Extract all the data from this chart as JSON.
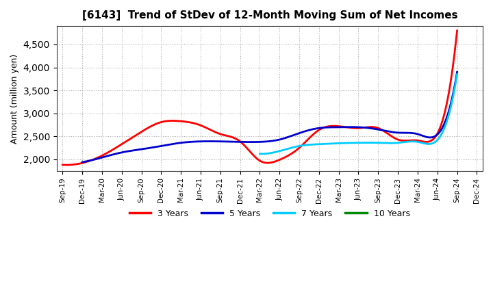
{
  "title": "[6143]  Trend of StDev of 12-Month Moving Sum of Net Incomes",
  "ylabel": "Amount (million yen)",
  "background_color": "#ffffff",
  "grid_color": "#aaaaaa",
  "x_labels": [
    "Sep-19",
    "Dec-19",
    "Mar-20",
    "Jun-20",
    "Sep-20",
    "Dec-20",
    "Mar-21",
    "Jun-21",
    "Sep-21",
    "Dec-21",
    "Mar-22",
    "Jun-22",
    "Sep-22",
    "Dec-22",
    "Mar-23",
    "Jun-23",
    "Sep-23",
    "Dec-23",
    "Mar-24",
    "Jun-24",
    "Sep-24",
    "Dec-24"
  ],
  "ylim": [
    1750,
    4900
  ],
  "yticks": [
    2000,
    2500,
    3000,
    3500,
    4000,
    4500
  ],
  "series": {
    "3 Years": {
      "color": "#ff0000",
      "y": [
        1880,
        1920,
        2080,
        2330,
        2600,
        2810,
        2830,
        2740,
        2550,
        2390,
        1970,
        1990,
        2250,
        2640,
        2720,
        2680,
        2680,
        2430,
        2410,
        2560,
        4800,
        null
      ]
    },
    "5 Years": {
      "color": "#0000cc",
      "y": [
        null,
        1940,
        2040,
        2150,
        2220,
        2290,
        2360,
        2390,
        2390,
        2380,
        2380,
        2430,
        2570,
        2680,
        2700,
        2700,
        2650,
        2580,
        2550,
        2540,
        3900,
        null
      ]
    },
    "7 Years": {
      "color": "#00ccff",
      "y": [
        null,
        null,
        null,
        null,
        null,
        null,
        null,
        null,
        null,
        null,
        2120,
        2180,
        2290,
        2330,
        2350,
        2360,
        2360,
        2360,
        2380,
        2420,
        3850,
        null
      ]
    },
    "10 Years": {
      "color": "#008800",
      "y": [
        null,
        null,
        null,
        null,
        null,
        null,
        null,
        null,
        null,
        null,
        null,
        null,
        null,
        null,
        null,
        null,
        null,
        null,
        null,
        null,
        null,
        null
      ]
    }
  },
  "legend": {
    "3 Years": "#ff0000",
    "5 Years": "#0000cc",
    "7 Years": "#00ccff",
    "10 Years": "#008800"
  }
}
